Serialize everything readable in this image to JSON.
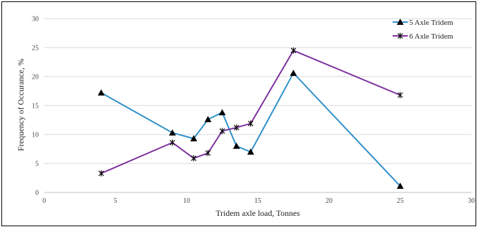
{
  "chart_data": {
    "type": "line",
    "xlabel": "Tridem axle load, Tonnes",
    "ylabel": "Frequency of Occurance, %",
    "xlim": [
      0,
      30
    ],
    "ylim": [
      0,
      30
    ],
    "x_ticks": [
      0,
      5,
      10,
      15,
      20,
      25,
      30
    ],
    "y_ticks": [
      0,
      5,
      10,
      15,
      20,
      25,
      30
    ],
    "grid": "horizontal",
    "legend_position": "top-right",
    "series": [
      {
        "name": "5 Axle Tridem",
        "color": "#2e8fc9",
        "marker": "triangle-icon",
        "x": [
          4,
          9,
          10.5,
          11.5,
          12.5,
          13.5,
          14.5,
          17.5,
          25
        ],
        "y": [
          17.2,
          10.3,
          9.3,
          12.6,
          13.8,
          8.0,
          7.0,
          20.6,
          1.1
        ]
      },
      {
        "name": "6 Axle Tridem",
        "color": "#7b2f9e",
        "marker": "star-icon",
        "x": [
          4,
          9,
          10.5,
          11.5,
          12.5,
          13.5,
          14.5,
          17.5,
          25
        ],
        "y": [
          3.3,
          8.6,
          5.9,
          6.8,
          10.6,
          11.2,
          11.9,
          24.5,
          16.8
        ]
      }
    ]
  }
}
